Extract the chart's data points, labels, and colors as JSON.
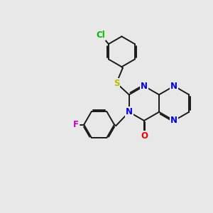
{
  "bg_color": "#e8e8e8",
  "bond_color": "#1a1a1a",
  "bond_width": 1.4,
  "dbo": 0.055,
  "atom_colors": {
    "N": "#0000ee",
    "O": "#ee0000",
    "S": "#bbbb00",
    "Cl": "#00bb00",
    "F": "#cc00cc",
    "C": "#1a1a1a"
  },
  "fs": 8.5
}
